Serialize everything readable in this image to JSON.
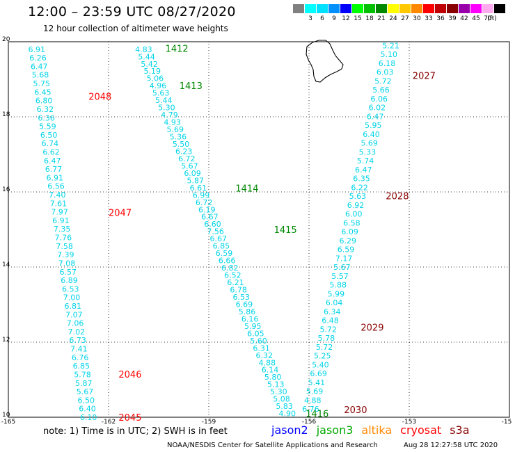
{
  "header": {
    "title": "12:00 – 23:59 UTC 08/27/2020",
    "subtitle": "12 hour collection of altimeter wave heights"
  },
  "color_scale": {
    "unit_label": "(ft)",
    "steps": [
      {
        "label": "",
        "color": "#808080"
      },
      {
        "label": "3",
        "color": "#00ffff"
      },
      {
        "label": "6",
        "color": "#00e0ff"
      },
      {
        "label": "9",
        "color": "#0090ff"
      },
      {
        "label": "12",
        "color": "#0000ff"
      },
      {
        "label": "15",
        "color": "#00ff00"
      },
      {
        "label": "18",
        "color": "#00c000"
      },
      {
        "label": "21",
        "color": "#008800"
      },
      {
        "label": "24",
        "color": "#ffff00"
      },
      {
        "label": "27",
        "color": "#ffc800"
      },
      {
        "label": "30",
        "color": "#ff8800"
      },
      {
        "label": "33",
        "color": "#ff0000"
      },
      {
        "label": "36",
        "color": "#c00000"
      },
      {
        "label": "39",
        "color": "#880000"
      },
      {
        "label": "42",
        "color": "#9900aa"
      },
      {
        "label": "45",
        "color": "#ff00ff"
      },
      {
        "label": "70",
        "color": "#ffaaee"
      },
      {
        "label": "",
        "color": "#000000"
      }
    ]
  },
  "notes": {
    "text": "note:  1) Time is in UTC;  2) SWH is in feet"
  },
  "legend": [
    {
      "name": "jason2",
      "color": "#0000ff"
    },
    {
      "name": "jason3",
      "color": "#00aa00"
    },
    {
      "name": "altika",
      "color": "#ff8800"
    },
    {
      "name": "cryosat",
      "color": "#ff0000"
    },
    {
      "name": "s3a",
      "color": "#880000"
    }
  ],
  "footer": {
    "credit": "NOAA/NESDIS Center for Satellite Applications and Research",
    "timestamp": "Aug 28 12:27:58 UTC 2020"
  },
  "chart_data": {
    "type": "scatter",
    "xlim": [
      -165,
      -150
    ],
    "ylim": [
      10,
      20
    ],
    "xticks": [
      "-165",
      "-162",
      "-159",
      "-156",
      "-153",
      "-15"
    ],
    "yticks": [
      "20",
      "18",
      "16",
      "14",
      "12",
      "10"
    ],
    "grid": true,
    "value_color": "#00d4e8",
    "tracks": [
      {
        "color": "#ff0000",
        "labels": [
          {
            "text": "2048",
            "lon": -162.6,
            "lat": 18.55
          },
          {
            "text": "2047",
            "lon": -162.0,
            "lat": 15.45
          },
          {
            "text": "2046",
            "lon": -161.7,
            "lat": 11.15
          },
          {
            "text": "2045",
            "lon": -161.7,
            "lat": 10.0
          }
        ],
        "start": {
          "lon": -164.15,
          "lat": 19.8
        },
        "end": {
          "lon": -162.6,
          "lat": 10.0
        },
        "values": [
          "6.91",
          "6.26",
          "6.47",
          "5.68",
          "5.75",
          "6.45",
          "6.80",
          "6.32",
          "6.36",
          "5.59",
          "6.50",
          "6.74",
          "6.62",
          "6.47",
          "6.77",
          "6.91",
          "6.56",
          "7.40",
          "7.61",
          "7.97",
          "6.91",
          "7.35",
          "7.76",
          "7.58",
          "7.39",
          "7.08",
          "6.57",
          "6.89",
          "6.53",
          "7.00",
          "6.81",
          "7.07",
          "7.06",
          "7.02",
          "6.73",
          "7.41",
          "6.76",
          "6.85",
          "5.78",
          "5.87",
          "5.67",
          "6.50",
          "6.40",
          "6.10"
        ]
      },
      {
        "color": "#008800",
        "labels": [
          {
            "text": "1412",
            "lon": -160.3,
            "lat": 19.82
          },
          {
            "text": "1413",
            "lon": -159.88,
            "lat": 18.83
          },
          {
            "text": "1414",
            "lon": -158.2,
            "lat": 16.1
          },
          {
            "text": "1415",
            "lon": -157.05,
            "lat": 15.0
          },
          {
            "text": "1416",
            "lon": -156.1,
            "lat": 10.1
          }
        ],
        "start": {
          "lon": -160.95,
          "lat": 19.8
        },
        "end": {
          "lon": -156.65,
          "lat": 10.1
        },
        "values": [
          "4.83",
          "5.44",
          "5.42",
          "5.19",
          "5.06",
          "4.96",
          "5.63",
          "5.44",
          "5.30",
          "4.79",
          "4.93",
          "5.69",
          "5.36",
          "5.50",
          "6.23",
          "6.72",
          "5.67",
          "6.09",
          "5.87",
          "6.61",
          "6.99",
          "6.72",
          "6.19",
          "6.67",
          "6.60",
          "7.56",
          "6.67",
          "6.85",
          "6.59",
          "6.66",
          "6.82",
          "6.52",
          "6.21",
          "6.78",
          "6.53",
          "6.69",
          "5.86",
          "6.16",
          "5.95",
          "6.05",
          "5.60",
          "6.31",
          "6.32",
          "4.88",
          "6.14",
          "5.80",
          "5.13",
          "5.30",
          "5.08",
          "5.83",
          "4.90"
        ]
      },
      {
        "color": "#880000",
        "labels": [
          {
            "text": "2027",
            "lon": -152.9,
            "lat": 19.1
          },
          {
            "text": "2028",
            "lon": -153.7,
            "lat": 15.9
          },
          {
            "text": "2029",
            "lon": -154.45,
            "lat": 12.4
          },
          {
            "text": "2030",
            "lon": -154.95,
            "lat": 10.2
          }
        ],
        "start": {
          "lon": -153.55,
          "lat": 19.9
        },
        "end": {
          "lon": -155.95,
          "lat": 10.22
        },
        "values": [
          "5.21",
          "5.10",
          "6.18",
          "6.03",
          "5.72",
          "5.66",
          "6.06",
          "6.02",
          "6.47",
          "5.95",
          "6.40",
          "5.69",
          "5.33",
          "5.74",
          "6.47",
          "6.35",
          "6.22",
          "5.63",
          "6.92",
          "6.00",
          "6.58",
          "6.09",
          "6.29",
          "6.59",
          "7.17",
          "5.67",
          "5.57",
          "5.88",
          "5.99",
          "6.04",
          "6.34",
          "6.48",
          "5.72",
          "5.78",
          "5.72",
          "5.25",
          "5.40",
          "6.69",
          "5.41",
          "5.69",
          "4.88",
          "6.76"
        ]
      }
    ]
  }
}
